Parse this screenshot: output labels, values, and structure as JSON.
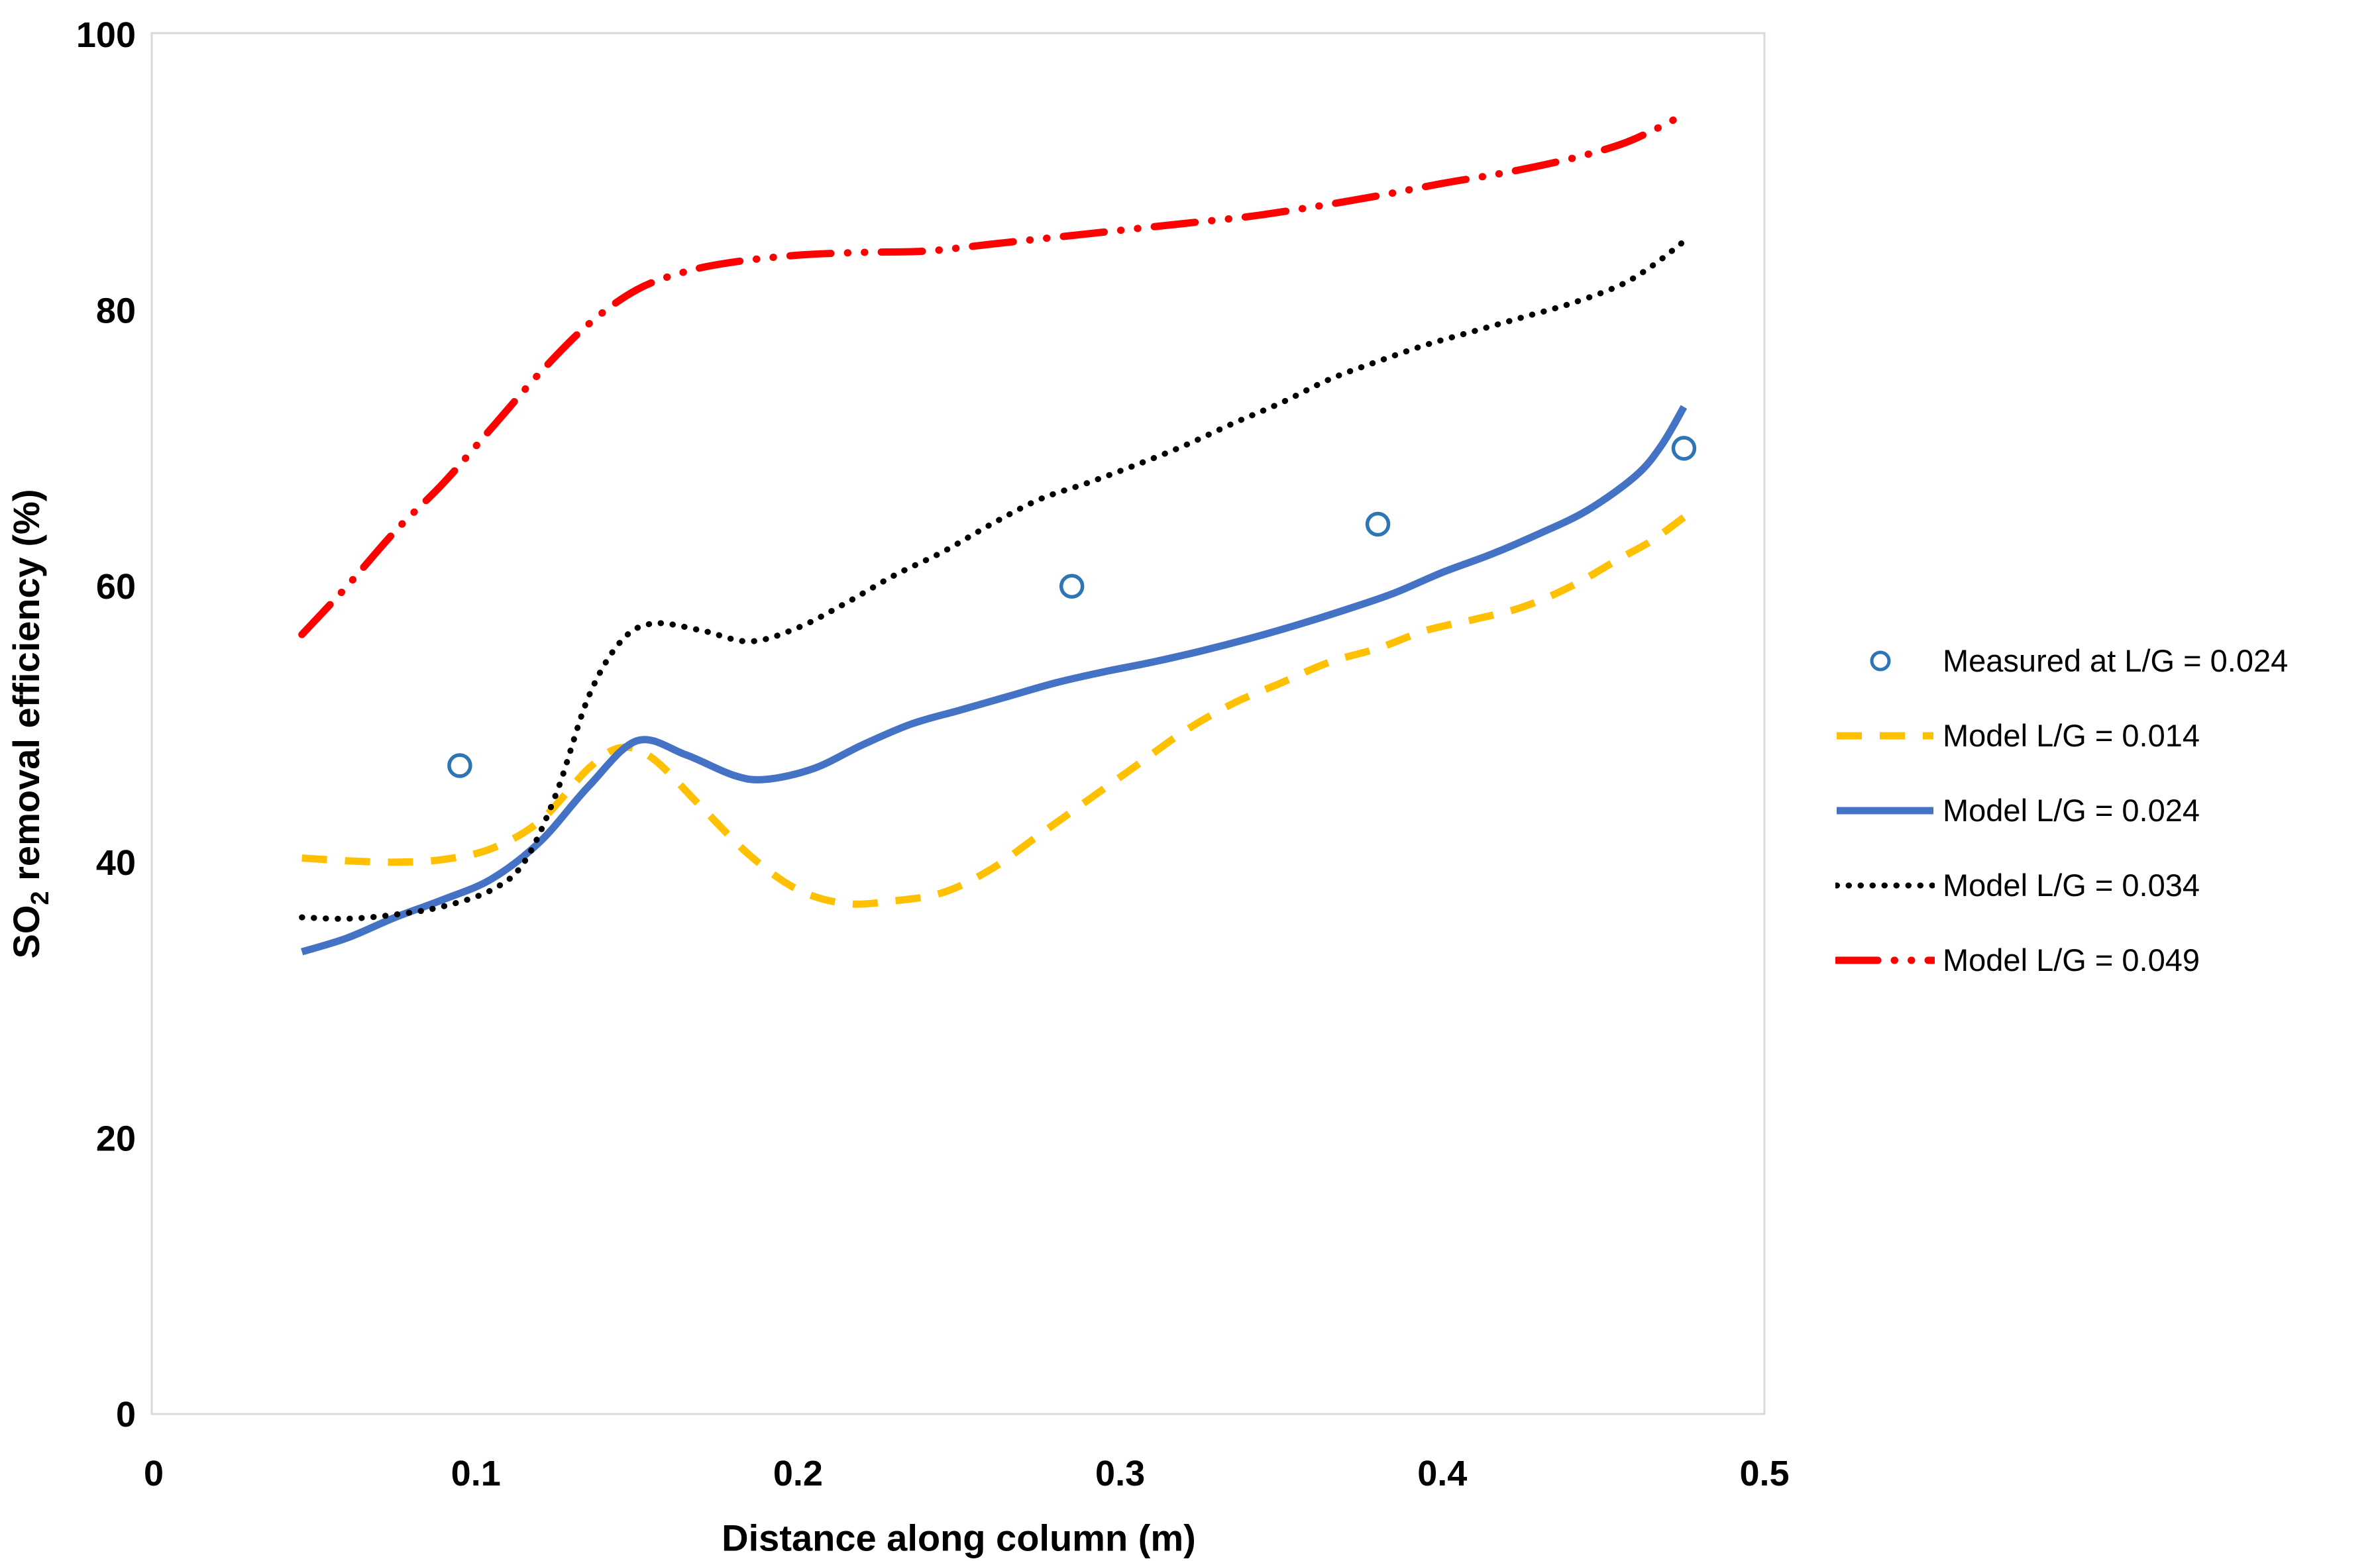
{
  "figure": {
    "background": "#FFFFFF",
    "frame_color": "#D9D9D9",
    "text_color": "#000000"
  },
  "axes": {
    "y_title": {
      "prefix": "SO",
      "sub": "2",
      "rest": " removal efficiency (%)"
    },
    "x_title": "Distance along column (m)",
    "y_tick_labels": [
      "0",
      "20",
      "40",
      "60",
      "80",
      "100"
    ],
    "y_tick_values": [
      0,
      20,
      40,
      60,
      80,
      100
    ],
    "x_tick_labels": [
      "0",
      "0.1",
      "0.2",
      "0.3",
      "0.4",
      "0.5"
    ],
    "x_tick_values": [
      0,
      0.1,
      0.2,
      0.3,
      0.4,
      0.5
    ]
  },
  "chart_data": {
    "type": "line",
    "title": "",
    "xlabel": "Distance along column (m)",
    "ylabel": "SO2 removal efficiency (%)",
    "xlim": [
      0,
      0.5
    ],
    "ylim": [
      0,
      100
    ],
    "grid": false,
    "legend_position": "right-center",
    "series": [
      {
        "name": "Measured at L/G = 0.024",
        "type": "scatter",
        "marker": "open-circle",
        "color": "#2E75B6",
        "points": [
          [
            0.095,
            47
          ],
          [
            0.285,
            60
          ],
          [
            0.38,
            64.5
          ],
          [
            0.475,
            70
          ]
        ]
      },
      {
        "name": "Model L/G = 0.014",
        "type": "line",
        "style": "dashed",
        "color": "#FFC000",
        "points": [
          [
            0.046,
            40.3
          ],
          [
            0.06,
            40.1
          ],
          [
            0.075,
            40.0
          ],
          [
            0.09,
            40.2
          ],
          [
            0.105,
            41.0
          ],
          [
            0.12,
            43.0
          ],
          [
            0.135,
            46.8
          ],
          [
            0.145,
            48.3
          ],
          [
            0.155,
            47.5
          ],
          [
            0.17,
            44.0
          ],
          [
            0.185,
            40.5
          ],
          [
            0.2,
            38.0
          ],
          [
            0.215,
            37.0
          ],
          [
            0.23,
            37.2
          ],
          [
            0.245,
            37.8
          ],
          [
            0.26,
            39.5
          ],
          [
            0.275,
            42.0
          ],
          [
            0.29,
            44.5
          ],
          [
            0.305,
            47.0
          ],
          [
            0.32,
            49.5
          ],
          [
            0.335,
            51.5
          ],
          [
            0.35,
            53.0
          ],
          [
            0.365,
            54.5
          ],
          [
            0.38,
            55.5
          ],
          [
            0.395,
            56.8
          ],
          [
            0.41,
            57.6
          ],
          [
            0.425,
            58.5
          ],
          [
            0.44,
            60.0
          ],
          [
            0.455,
            62.0
          ],
          [
            0.465,
            63.3
          ],
          [
            0.475,
            65.0
          ]
        ]
      },
      {
        "name": "Model L/G = 0.024",
        "type": "line",
        "style": "solid",
        "color": "#4472C4",
        "points": [
          [
            0.046,
            33.5
          ],
          [
            0.06,
            34.5
          ],
          [
            0.075,
            36.0
          ],
          [
            0.09,
            37.3
          ],
          [
            0.105,
            38.8
          ],
          [
            0.12,
            41.5
          ],
          [
            0.135,
            45.5
          ],
          [
            0.15,
            48.8
          ],
          [
            0.165,
            47.8
          ],
          [
            0.18,
            46.3
          ],
          [
            0.19,
            46.0
          ],
          [
            0.205,
            46.8
          ],
          [
            0.22,
            48.5
          ],
          [
            0.235,
            50.0
          ],
          [
            0.25,
            51.0
          ],
          [
            0.265,
            52.0
          ],
          [
            0.28,
            53.0
          ],
          [
            0.295,
            53.8
          ],
          [
            0.31,
            54.5
          ],
          [
            0.325,
            55.3
          ],
          [
            0.34,
            56.2
          ],
          [
            0.355,
            57.2
          ],
          [
            0.37,
            58.3
          ],
          [
            0.385,
            59.5
          ],
          [
            0.4,
            61.0
          ],
          [
            0.415,
            62.3
          ],
          [
            0.43,
            63.8
          ],
          [
            0.445,
            65.5
          ],
          [
            0.46,
            68.0
          ],
          [
            0.468,
            70.2
          ],
          [
            0.475,
            73.0
          ]
        ]
      },
      {
        "name": "Model L/G = 0.034",
        "type": "line",
        "style": "dotted",
        "color": "#000000",
        "points": [
          [
            0.046,
            36.0
          ],
          [
            0.06,
            35.9
          ],
          [
            0.075,
            36.2
          ],
          [
            0.09,
            36.8
          ],
          [
            0.105,
            38.0
          ],
          [
            0.115,
            40.0
          ],
          [
            0.125,
            45.0
          ],
          [
            0.135,
            52.0
          ],
          [
            0.145,
            56.0
          ],
          [
            0.155,
            57.3
          ],
          [
            0.17,
            56.8
          ],
          [
            0.185,
            56.0
          ],
          [
            0.2,
            57.0
          ],
          [
            0.215,
            58.8
          ],
          [
            0.23,
            60.8
          ],
          [
            0.245,
            62.5
          ],
          [
            0.26,
            64.5
          ],
          [
            0.275,
            66.3
          ],
          [
            0.29,
            67.5
          ],
          [
            0.305,
            68.8
          ],
          [
            0.32,
            70.2
          ],
          [
            0.335,
            71.8
          ],
          [
            0.35,
            73.3
          ],
          [
            0.365,
            75.0
          ],
          [
            0.38,
            76.3
          ],
          [
            0.395,
            77.5
          ],
          [
            0.41,
            78.5
          ],
          [
            0.425,
            79.5
          ],
          [
            0.44,
            80.5
          ],
          [
            0.455,
            81.8
          ],
          [
            0.465,
            83.2
          ],
          [
            0.475,
            85.0
          ]
        ]
      },
      {
        "name": "Model L/G = 0.049",
        "type": "line",
        "style": "dash-dot-dot",
        "color": "#FF0000",
        "points": [
          [
            0.046,
            56.5
          ],
          [
            0.06,
            60.0
          ],
          [
            0.075,
            64.0
          ],
          [
            0.09,
            67.5
          ],
          [
            0.105,
            71.5
          ],
          [
            0.12,
            75.5
          ],
          [
            0.135,
            79.0
          ],
          [
            0.15,
            81.5
          ],
          [
            0.165,
            82.8
          ],
          [
            0.18,
            83.5
          ],
          [
            0.2,
            84.0
          ],
          [
            0.22,
            84.2
          ],
          [
            0.24,
            84.3
          ],
          [
            0.26,
            84.8
          ],
          [
            0.28,
            85.3
          ],
          [
            0.3,
            85.8
          ],
          [
            0.32,
            86.3
          ],
          [
            0.34,
            86.8
          ],
          [
            0.36,
            87.5
          ],
          [
            0.38,
            88.3
          ],
          [
            0.4,
            89.2
          ],
          [
            0.42,
            90.0
          ],
          [
            0.44,
            91.0
          ],
          [
            0.455,
            92.0
          ],
          [
            0.465,
            93.0
          ],
          [
            0.475,
            94.2
          ]
        ]
      }
    ]
  }
}
